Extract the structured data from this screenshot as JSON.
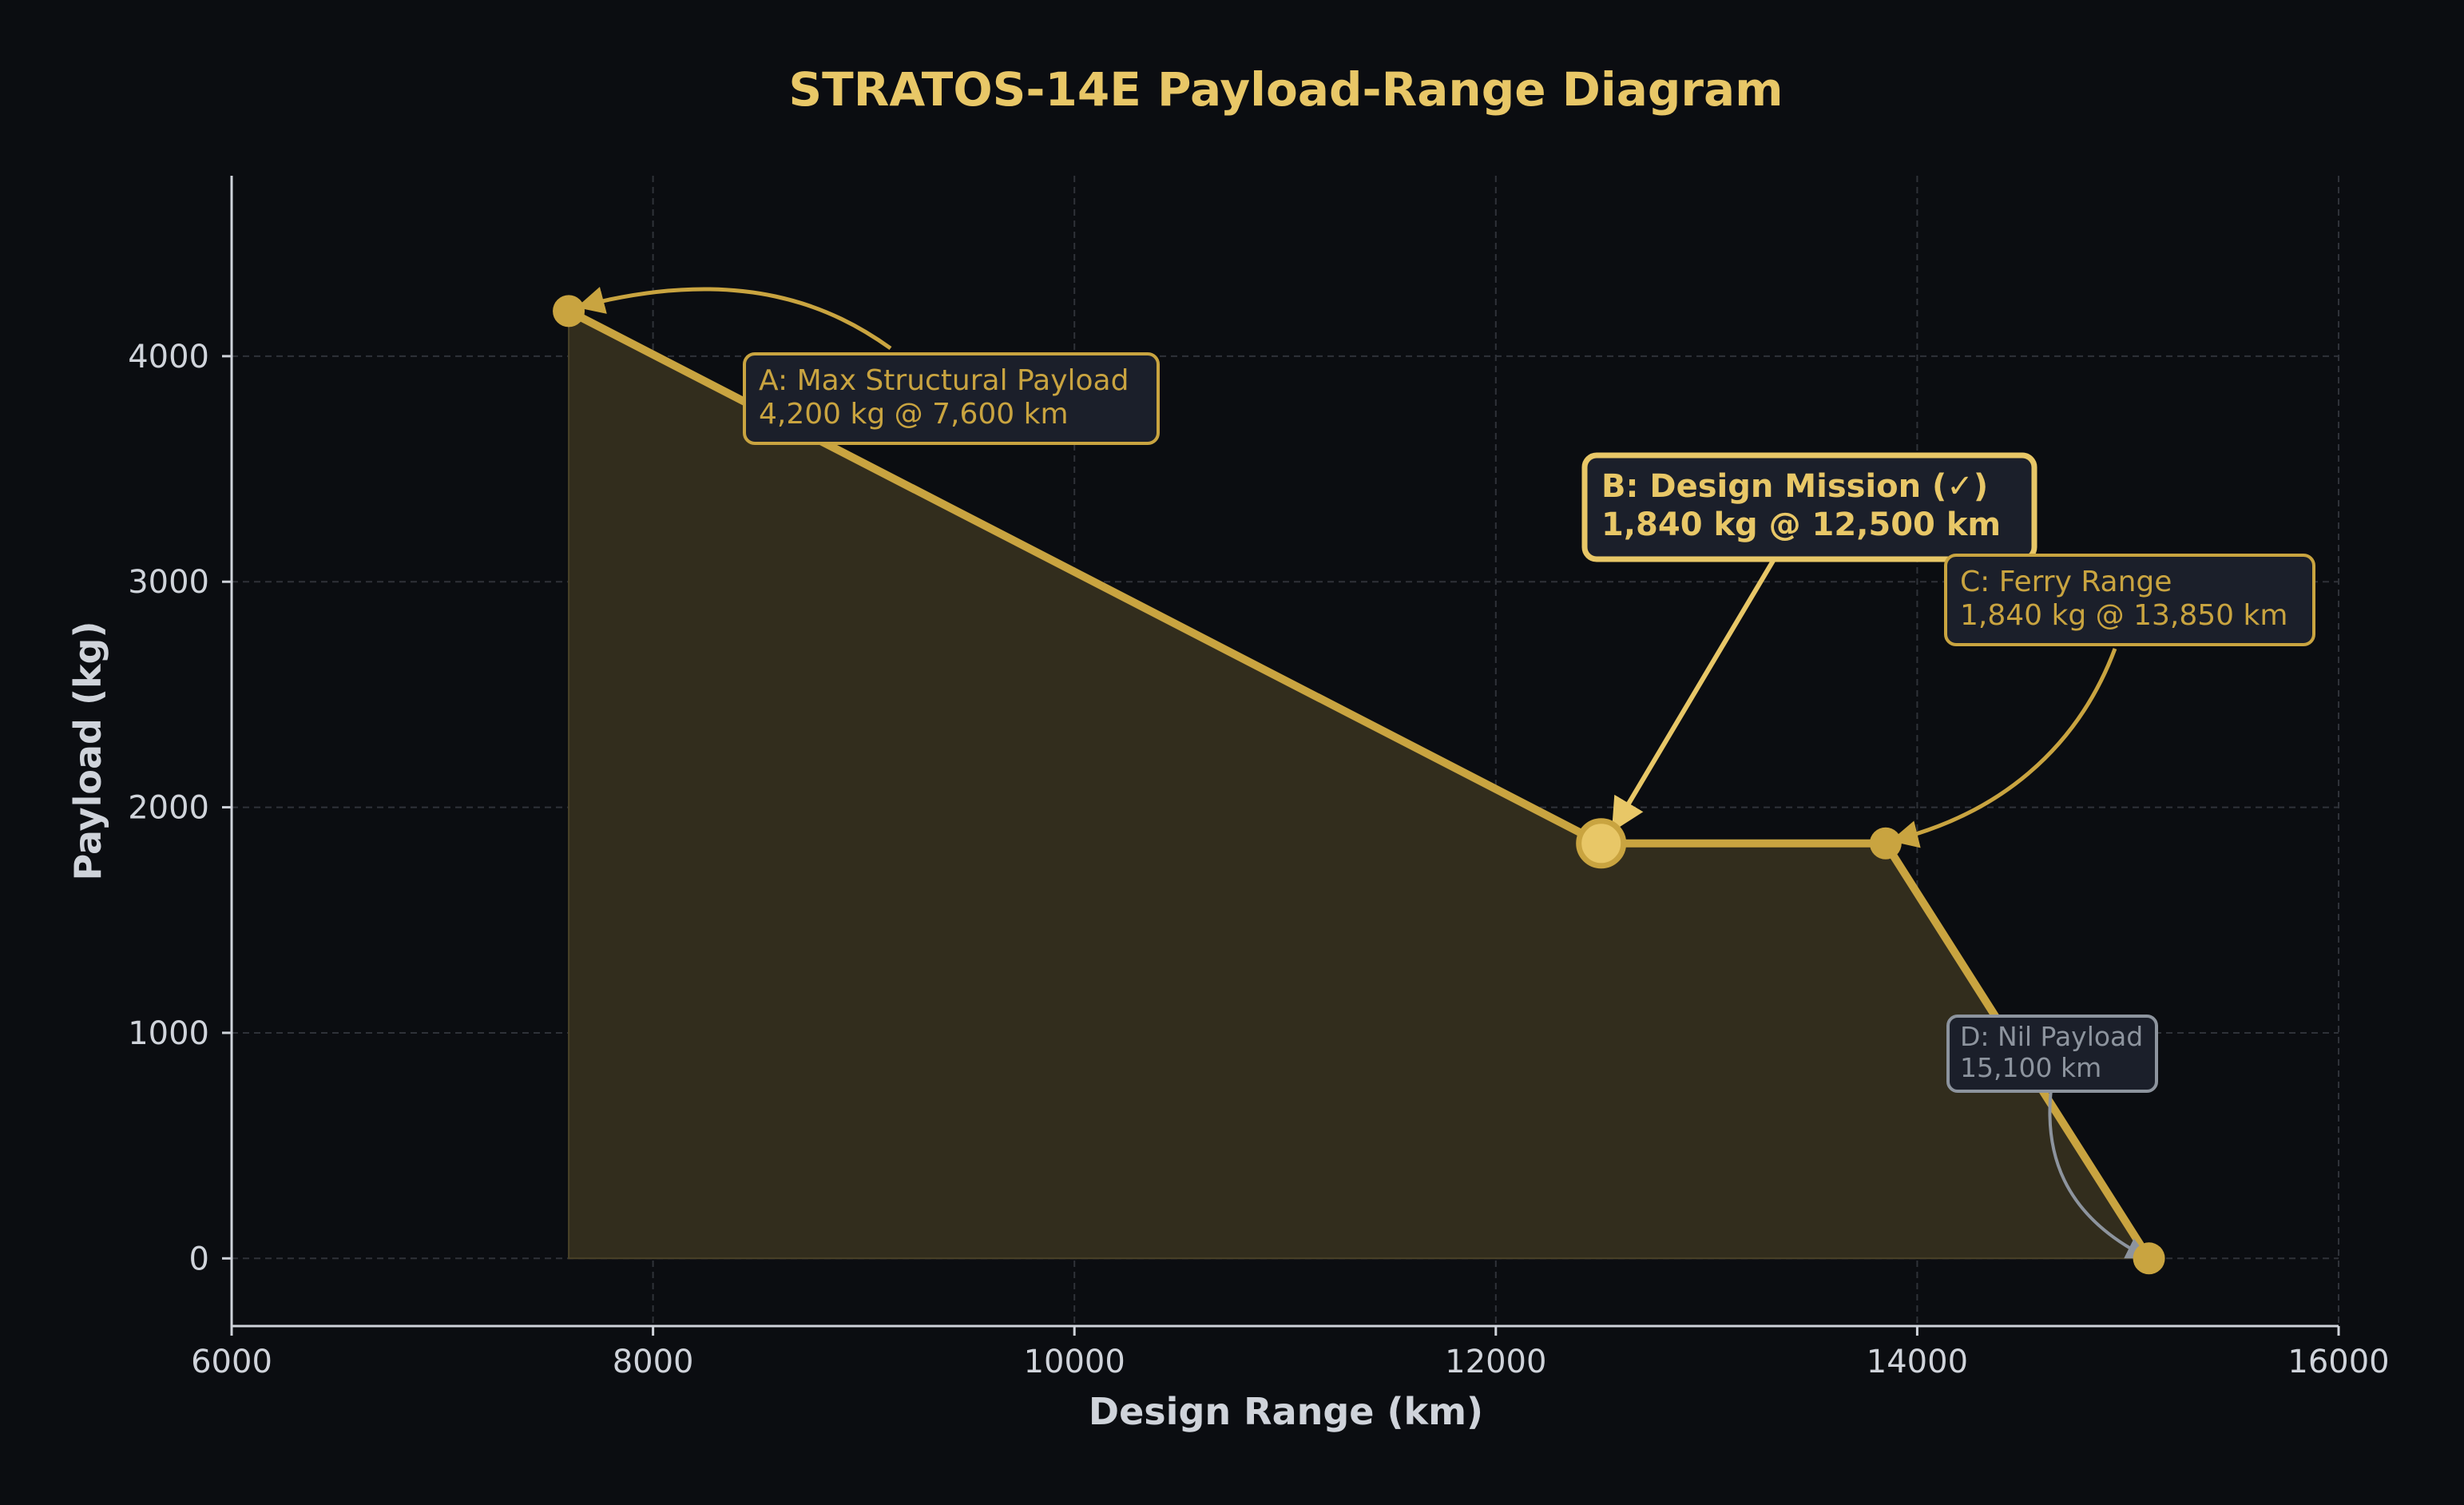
{
  "colors": {
    "background": "#0b0d11",
    "accent": "#c9a440",
    "highlight": "#e8c767",
    "fill": "#322d1d",
    "box_bg": "#1b1f2a",
    "grid": "#2f3239",
    "axis": "#cfd3da",
    "muted": "#8d949e",
    "text": "#d0d4db"
  },
  "chart_data": {
    "type": "area",
    "title": "STRATOS-14E Payload-Range Diagram",
    "xlabel": "Design Range (km)",
    "ylabel": "Payload (kg)",
    "xlim": [
      6000,
      16000
    ],
    "ylim": [
      -300,
      4800
    ],
    "x_ticks": [
      6000,
      8000,
      10000,
      12000,
      14000,
      16000
    ],
    "y_ticks": [
      0,
      1000,
      2000,
      3000,
      4000
    ],
    "grid": true,
    "series": [
      {
        "x": [
          7600,
          12500,
          13850,
          15100
        ],
        "y": [
          4200,
          1840,
          1840,
          0
        ]
      }
    ],
    "points": [
      {
        "id": "A",
        "x": 7600,
        "y": 4200
      },
      {
        "id": "B",
        "x": 12500,
        "y": 1840
      },
      {
        "id": "C",
        "x": 13850,
        "y": 1840
      },
      {
        "id": "D",
        "x": 15100,
        "y": 0
      }
    ],
    "annotations": [
      {
        "point": "A",
        "line1": "A: Max Structural Payload",
        "line2": "4,200 kg @ 7,600 km"
      },
      {
        "point": "B",
        "line1": "B: Design Mission (✓)",
        "line2": "1,840 kg @ 12,500 km"
      },
      {
        "point": "C",
        "line1": "C: Ferry Range",
        "line2": "1,840 kg @ 13,850 km"
      },
      {
        "point": "D",
        "line1": "D: Nil Payload",
        "line2": "15,100 km"
      }
    ]
  }
}
